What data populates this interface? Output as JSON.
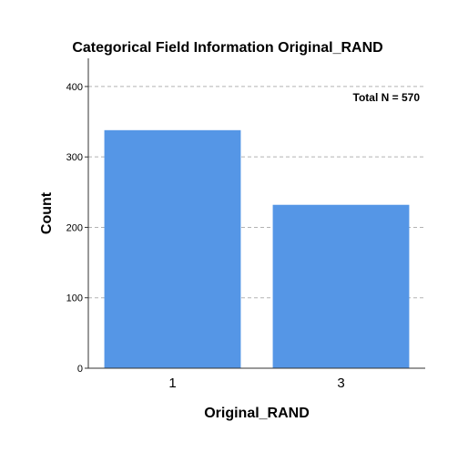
{
  "chart_data": {
    "type": "bar",
    "title": "Categorical Field Information Original_RAND",
    "xlabel": "Original_RAND",
    "ylabel": "Count",
    "categories": [
      "1",
      "3"
    ],
    "values": [
      338,
      232
    ],
    "ylim": [
      0,
      440
    ],
    "yticks": [
      0,
      100,
      200,
      300,
      400
    ],
    "grid": true,
    "annotation": "Total N =  570",
    "bar_color": "#5596e6",
    "grid_color": "#b3b3b3"
  }
}
